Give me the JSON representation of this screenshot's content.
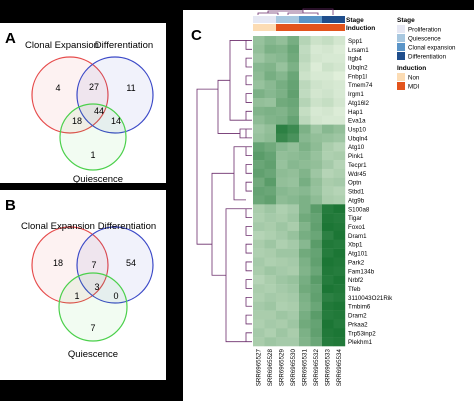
{
  "panels": {
    "a": {
      "label": "A",
      "set1": "Clonal Expansion",
      "set2": "Differentiation",
      "set3": "Quiescence",
      "counts": {
        "only1": "4",
        "only2": "11",
        "only3": "1",
        "s12": "27",
        "s13": "18",
        "s23": "14",
        "s123": "44"
      }
    },
    "b": {
      "label": "B",
      "set1": "Clonal Expansion",
      "set2": "Differentiation",
      "set3": "Quiescence",
      "counts": {
        "only1": "18",
        "only2": "54",
        "only3": "7",
        "s12": "7",
        "s13": "1",
        "s23": "0",
        "s123": "3"
      }
    },
    "c": {
      "label": "C"
    }
  },
  "heatmap": {
    "samples": [
      "SRR6965527",
      "SRR6965528",
      "SRR6965529",
      "SRR6965530",
      "SRR6965531",
      "SRR6965532",
      "SRR6965533",
      "SRR6965534"
    ],
    "genes": [
      "Spp1",
      "Lrsam1",
      "Itgb4",
      "Ubqln2",
      "Fnbp1l",
      "Tmem74",
      "Irgm1",
      "Atg16l2",
      "Hap1",
      "Eva1a",
      "Usp10",
      "Ubqln4",
      "Atg10",
      "Pink1",
      "Tecpr1",
      "Wdr45",
      "Optn",
      "Stbd1",
      "Atg9b",
      "S100a8",
      "Tigar",
      "Foxo1",
      "Dram1",
      "Xbp1",
      "Atg101",
      "Park2",
      "Fam134b",
      "Nrbf2",
      "Tfeb",
      "3110043O21Rik",
      "Tmbim6",
      "Dram2",
      "Prkaa2",
      "Trp53inp2",
      "Plekhm1"
    ],
    "annotation_rows": {
      "stage": "Stage",
      "induction": "Induction"
    },
    "stage_levels": [
      "Proliferation",
      "Proliferation",
      "Quiescence",
      "Quiescence",
      "Clonal expansion",
      "Clonal expansion",
      "Differentiation",
      "Differentiation"
    ],
    "induction_levels": [
      "Non",
      "Non",
      "MDI",
      "MDI",
      "MDI",
      "MDI",
      "MDI",
      "MDI"
    ],
    "values": [
      [
        0.38,
        0.45,
        0.4,
        0.52,
        0.25,
        0.15,
        0.18,
        0.12
      ],
      [
        0.4,
        0.5,
        0.48,
        0.58,
        0.2,
        0.1,
        0.12,
        0.08
      ],
      [
        0.35,
        0.42,
        0.45,
        0.55,
        0.22,
        0.12,
        0.1,
        0.1
      ],
      [
        0.45,
        0.48,
        0.38,
        0.5,
        0.18,
        0.08,
        0.15,
        0.12
      ],
      [
        0.42,
        0.52,
        0.46,
        0.58,
        0.15,
        0.1,
        0.1,
        0.06
      ],
      [
        0.38,
        0.44,
        0.52,
        0.6,
        0.22,
        0.14,
        0.12,
        0.1
      ],
      [
        0.5,
        0.45,
        0.5,
        0.62,
        0.2,
        0.12,
        0.14,
        0.1
      ],
      [
        0.4,
        0.38,
        0.55,
        0.58,
        0.25,
        0.15,
        0.18,
        0.12
      ],
      [
        0.48,
        0.5,
        0.48,
        0.55,
        0.18,
        0.1,
        0.12,
        0.08
      ],
      [
        0.42,
        0.48,
        0.5,
        0.6,
        0.22,
        0.12,
        0.1,
        0.1
      ],
      [
        0.35,
        0.4,
        0.85,
        0.78,
        0.5,
        0.35,
        0.45,
        0.4
      ],
      [
        0.38,
        0.42,
        0.8,
        0.72,
        0.45,
        0.4,
        0.38,
        0.35
      ],
      [
        0.6,
        0.55,
        0.45,
        0.4,
        0.5,
        0.42,
        0.3,
        0.25
      ],
      [
        0.65,
        0.6,
        0.4,
        0.42,
        0.45,
        0.38,
        0.28,
        0.3
      ],
      [
        0.58,
        0.62,
        0.38,
        0.45,
        0.42,
        0.4,
        0.32,
        0.25
      ],
      [
        0.62,
        0.58,
        0.42,
        0.4,
        0.48,
        0.35,
        0.25,
        0.28
      ],
      [
        0.55,
        0.65,
        0.4,
        0.38,
        0.52,
        0.4,
        0.3,
        0.32
      ],
      [
        0.6,
        0.58,
        0.45,
        0.42,
        0.45,
        0.38,
        0.28,
        0.25
      ],
      [
        0.58,
        0.62,
        0.42,
        0.45,
        0.5,
        0.42,
        0.3,
        0.28
      ],
      [
        0.3,
        0.35,
        0.28,
        0.32,
        0.5,
        0.65,
        0.88,
        0.92
      ],
      [
        0.28,
        0.32,
        0.3,
        0.35,
        0.55,
        0.6,
        0.9,
        0.88
      ],
      [
        0.32,
        0.3,
        0.35,
        0.3,
        0.48,
        0.62,
        0.92,
        0.9
      ],
      [
        0.25,
        0.28,
        0.32,
        0.38,
        0.52,
        0.58,
        0.85,
        0.92
      ],
      [
        0.3,
        0.35,
        0.28,
        0.32,
        0.45,
        0.65,
        0.9,
        0.88
      ],
      [
        0.28,
        0.3,
        0.35,
        0.35,
        0.55,
        0.6,
        0.88,
        0.92
      ],
      [
        0.32,
        0.28,
        0.3,
        0.32,
        0.5,
        0.62,
        0.92,
        0.9
      ],
      [
        0.3,
        0.35,
        0.32,
        0.3,
        0.48,
        0.58,
        0.9,
        0.88
      ],
      [
        0.25,
        0.3,
        0.35,
        0.38,
        0.52,
        0.65,
        0.88,
        0.92
      ],
      [
        0.3,
        0.28,
        0.32,
        0.35,
        0.55,
        0.6,
        0.92,
        0.9
      ],
      [
        0.28,
        0.32,
        0.3,
        0.32,
        0.5,
        0.62,
        0.85,
        0.88
      ],
      [
        0.32,
        0.35,
        0.28,
        0.3,
        0.48,
        0.58,
        0.9,
        0.92
      ],
      [
        0.3,
        0.3,
        0.35,
        0.32,
        0.52,
        0.65,
        0.88,
        0.9
      ],
      [
        0.28,
        0.32,
        0.3,
        0.35,
        0.55,
        0.6,
        0.92,
        0.88
      ],
      [
        0.32,
        0.28,
        0.35,
        0.3,
        0.5,
        0.62,
        0.9,
        0.92
      ],
      [
        0.3,
        0.35,
        0.32,
        0.32,
        0.48,
        0.58,
        0.88,
        0.9
      ]
    ],
    "legend": {
      "stage_title": "Stage",
      "stage_items": [
        {
          "label": "Proliferation",
          "color": "#e6e8f4"
        },
        {
          "label": "Quiescence",
          "color": "#a8c8e0"
        },
        {
          "label": "Clonal expansion",
          "color": "#5b95c8"
        },
        {
          "label": "Differentiation",
          "color": "#1f4e8c"
        }
      ],
      "induction_title": "Induction",
      "induction_items": [
        {
          "label": "Non",
          "color": "#fcdcb4"
        },
        {
          "label": "MDI",
          "color": "#e3541c"
        }
      ]
    }
  },
  "colors": {
    "venn_red": "#e64b4b",
    "venn_blue": "#3b49c7",
    "venn_green": "#4cd04c",
    "dendro": "#6b2d6b",
    "heat_low": "#eef7e6",
    "heat_high": "#0a6b26"
  }
}
